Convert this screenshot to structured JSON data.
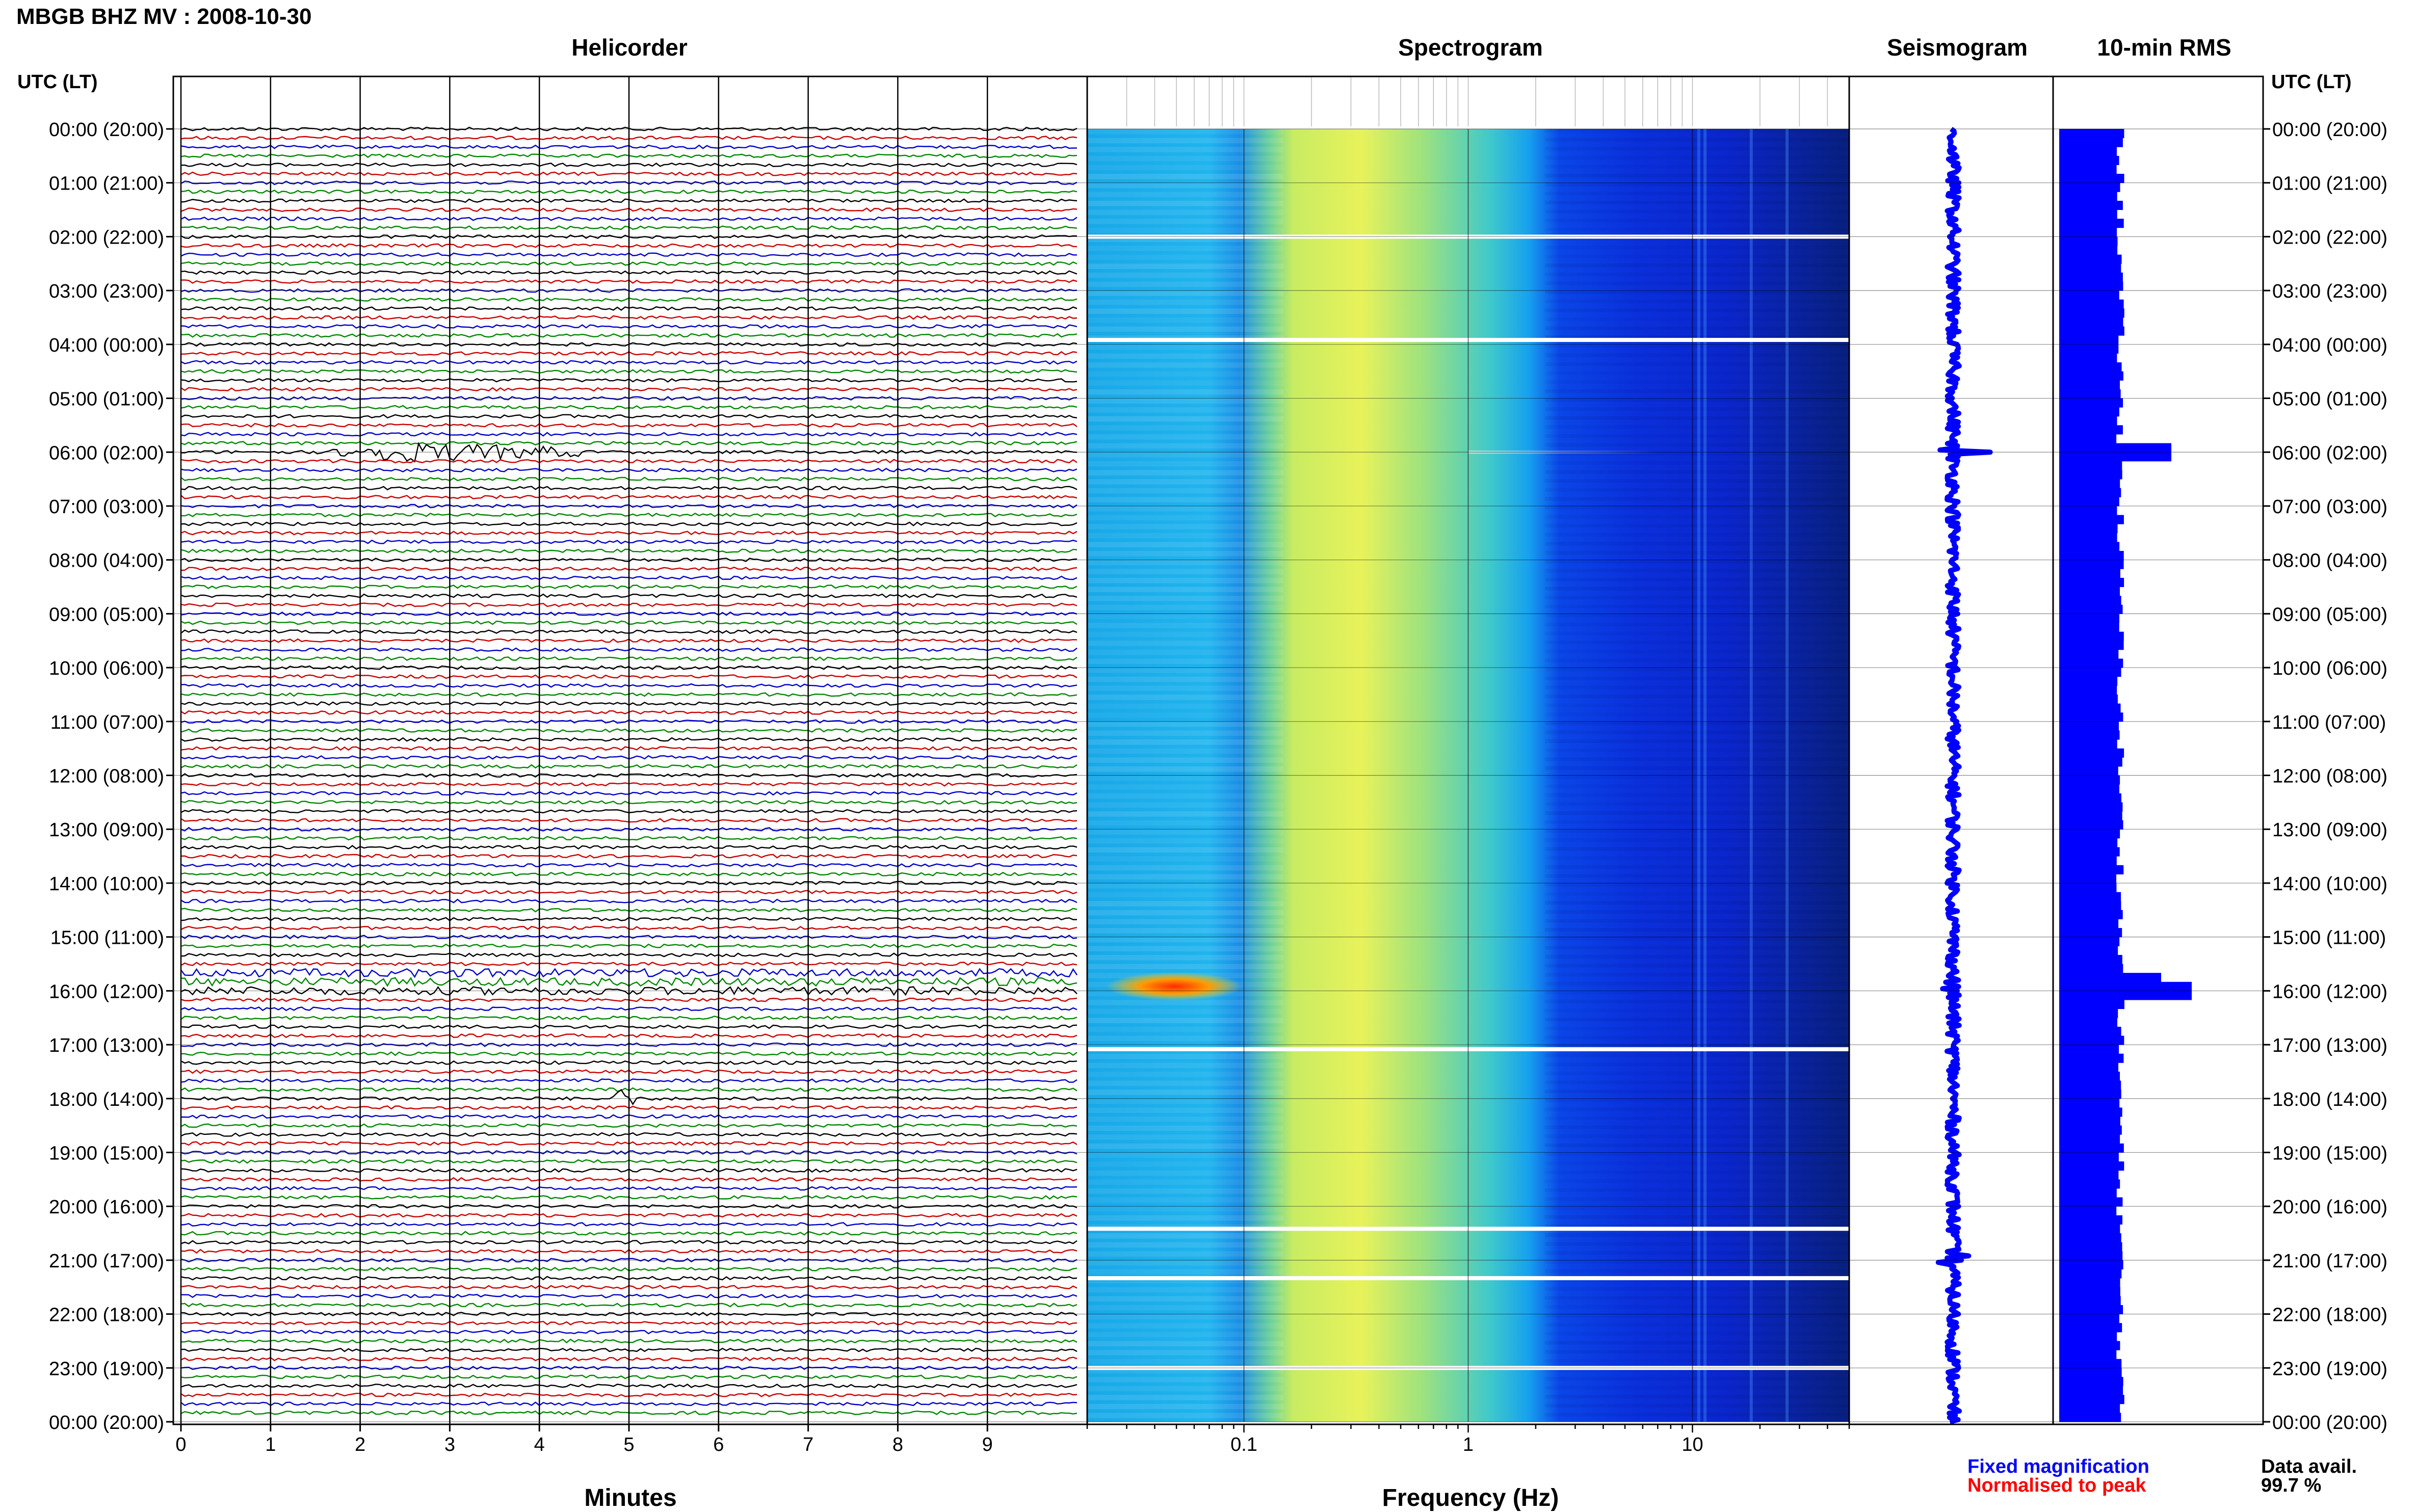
{
  "header": {
    "title": "MBGB BHZ MV : 2008-10-30",
    "utc_label_left": "UTC (LT)",
    "utc_label_right": "UTC (LT)"
  },
  "panels": {
    "helicorder": "Helicorder",
    "spectrogram": "Spectrogram",
    "seismogram": "Seismogram",
    "rms": "10-min RMS"
  },
  "axes": {
    "minutes_label": "Minutes",
    "frequency_label": "Frequency (Hz)"
  },
  "legend": {
    "fixed": "Fixed magnification",
    "normalised": "Normalised to peak",
    "data_avail_label": "Data avail.",
    "data_avail_value": "99.7 %"
  },
  "colors": {
    "trace_cycle": [
      "#000000",
      "#cc0000",
      "#0000cc",
      "#008800"
    ],
    "blue": "#0000ff",
    "red": "#ff0000"
  },
  "time_labels": [
    "00:00 (20:00)",
    "01:00 (21:00)",
    "02:00 (22:00)",
    "03:00 (23:00)",
    "04:00 (00:00)",
    "05:00 (01:00)",
    "06:00 (02:00)",
    "07:00 (03:00)",
    "08:00 (04:00)",
    "09:00 (05:00)",
    "10:00 (06:00)",
    "11:00 (07:00)",
    "12:00 (08:00)",
    "13:00 (09:00)",
    "14:00 (10:00)",
    "15:00 (11:00)",
    "16:00 (12:00)",
    "17:00 (13:00)",
    "18:00 (14:00)",
    "19:00 (15:00)",
    "20:00 (16:00)",
    "21:00 (17:00)",
    "22:00 (18:00)",
    "23:00 (19:00)",
    "00:00 (20:00)"
  ],
  "chart_data": [
    {
      "type": "line",
      "title": "Helicorder",
      "xlabel": "Minutes",
      "x_ticks": [
        "0",
        "1",
        "2",
        "3",
        "4",
        "5",
        "6",
        "7",
        "8",
        "9"
      ],
      "xlim": [
        0,
        10
      ],
      "rows": 144,
      "minutes_per_row": 10,
      "y_ticks": [
        "00:00 (20:00)",
        "01:00 (21:00)",
        "02:00 (22:00)",
        "03:00 (23:00)",
        "04:00 (00:00)",
        "05:00 (01:00)",
        "06:00 (02:00)",
        "07:00 (03:00)",
        "08:00 (04:00)",
        "09:00 (05:00)",
        "10:00 (06:00)",
        "11:00 (07:00)",
        "12:00 (08:00)",
        "13:00 (09:00)",
        "14:00 (10:00)",
        "15:00 (11:00)",
        "16:00 (12:00)",
        "17:00 (13:00)",
        "18:00 (14:00)",
        "19:00 (15:00)",
        "20:00 (16:00)",
        "21:00 (17:00)",
        "22:00 (18:00)",
        "23:00 (19:00)",
        "00:00 (20:00)"
      ],
      "events": [
        {
          "time_utc": "06:00",
          "minute_start": 1.6,
          "minute_peak": 2.3,
          "minute_end": 4.5
        },
        {
          "time_utc": "18:00",
          "minute_start": 4.7,
          "minute_peak": 4.9,
          "minute_end": 5.1
        }
      ]
    },
    {
      "type": "heatmap",
      "title": "Spectrogram",
      "xlabel": "Frequency (Hz)",
      "x_scale": "log",
      "xlim": [
        0.02,
        50
      ],
      "x_ticks": [
        "0.1",
        "1",
        "10"
      ],
      "colormap": "jet",
      "bands": [
        {
          "freq_range_hz": [
            0.02,
            0.1
          ],
          "level": "low"
        },
        {
          "freq_range_hz": [
            0.15,
            0.6
          ],
          "level": "high"
        },
        {
          "freq_range_hz": [
            0.6,
            2
          ],
          "level": "medium"
        },
        {
          "freq_range_hz": [
            2,
            50
          ],
          "level": "low"
        }
      ],
      "events": [
        {
          "time_utc": "06:00",
          "freq_range_hz": [
            1,
            7
          ]
        },
        {
          "time_utc": "15:55",
          "freq_range_hz": [
            0.03,
            0.08
          ]
        }
      ]
    },
    {
      "type": "line",
      "title": "Seismogram",
      "events": [
        {
          "time_utc": "06:00"
        },
        {
          "time_utc": "15:55"
        },
        {
          "time_utc": "21:00"
        }
      ]
    },
    {
      "type": "bar",
      "title": "10-min RMS",
      "bins": 144,
      "baseline_relative": 0.3,
      "peaks": [
        {
          "time_utc": "06:00",
          "relative_value": 0.55
        },
        {
          "time_utc": "15:50",
          "relative_value": 0.5
        },
        {
          "time_utc": "16:00",
          "relative_value": 0.65
        }
      ]
    }
  ]
}
